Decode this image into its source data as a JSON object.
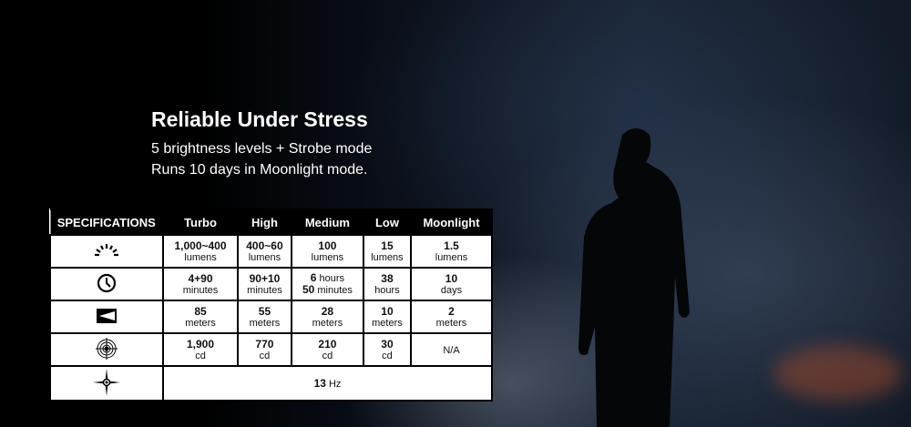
{
  "headline": "Reliable Under Stress",
  "lines": [
    "5 brightness levels + Strobe mode",
    "Runs 10 days in Moonlight mode."
  ],
  "table": {
    "header": [
      "SPECIFICATIONS",
      "Turbo",
      "High",
      "Medium",
      "Low",
      "Moonlight"
    ],
    "rows": [
      {
        "icon": "brightness-icon",
        "cells": [
          [
            "1,000~400",
            "lumens"
          ],
          [
            "400~60",
            "lumens"
          ],
          [
            "100",
            "lumens"
          ],
          [
            "15",
            "lumens"
          ],
          [
            "1.5",
            "lumens"
          ]
        ]
      },
      {
        "icon": "clock-icon",
        "cells": [
          [
            "4+90",
            "minutes"
          ],
          [
            "90+10",
            "minutes"
          ],
          [
            "6",
            "hours",
            "50",
            "minutes"
          ],
          [
            "38",
            "hours"
          ],
          [
            "10",
            "days"
          ]
        ]
      },
      {
        "icon": "beam-distance-icon",
        "cells": [
          [
            "85",
            "meters"
          ],
          [
            "55",
            "meters"
          ],
          [
            "28",
            "meters"
          ],
          [
            "10",
            "meters"
          ],
          [
            "2",
            "meters"
          ]
        ]
      },
      {
        "icon": "intensity-icon",
        "cells": [
          [
            "1,900",
            "cd"
          ],
          [
            "770",
            "cd"
          ],
          [
            "210",
            "cd"
          ],
          [
            "30",
            "cd"
          ],
          [
            "",
            "N/A"
          ]
        ]
      }
    ],
    "strobe": {
      "icon": "strobe-icon",
      "value": "13",
      "unit": "Hz"
    }
  }
}
